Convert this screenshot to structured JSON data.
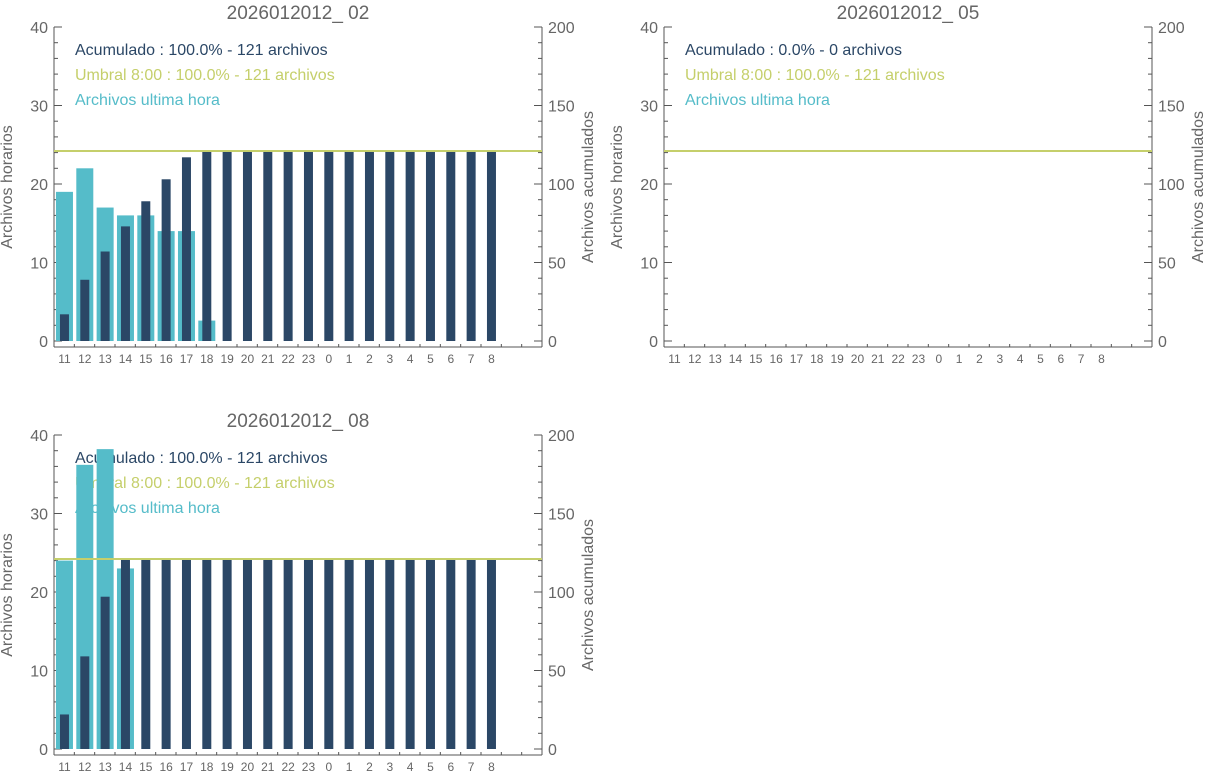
{
  "colors": {
    "accumulated": "#2b4766",
    "hourly": "#55bcc9",
    "threshold": "#c5cf6b",
    "axis": "#555555",
    "text": "#666666"
  },
  "chart_data": [
    {
      "type": "bar",
      "title": "2026012012_ 02",
      "ylabel_left": "Archivos horarios",
      "ylabel_right": "Archivos acumulados",
      "ylim_left": [
        0,
        40
      ],
      "ylim_right": [
        0,
        200
      ],
      "categories": [
        "11",
        "12",
        "13",
        "14",
        "15",
        "16",
        "17",
        "18",
        "19",
        "20",
        "21",
        "22",
        "23",
        "0",
        "1",
        "2",
        "3",
        "4",
        "5",
        "6",
        "7",
        "8"
      ],
      "legend": [
        "Acumulado : 100.0% - 121 archivos",
        "Umbral 8:00 : 100.0% - 121 archivos",
        "Archivos ultima hora"
      ],
      "threshold": 121,
      "series": [
        {
          "name": "Archivos ultima hora",
          "axis": "left",
          "values": [
            19,
            22,
            17,
            16,
            16,
            14,
            14,
            2.6,
            0,
            0,
            0,
            0,
            0,
            0,
            0,
            0,
            0,
            0,
            0,
            0,
            0,
            0
          ]
        },
        {
          "name": "Acumulado",
          "axis": "right",
          "values": [
            17,
            39,
            57,
            73,
            89,
            103,
            117,
            121,
            121,
            121,
            121,
            121,
            121,
            121,
            121,
            121,
            121,
            121,
            121,
            121,
            121,
            121
          ]
        }
      ]
    },
    {
      "type": "bar",
      "title": "2026012012_ 05",
      "ylabel_left": "Archivos horarios",
      "ylabel_right": "Archivos acumulados",
      "ylim_left": [
        0,
        40
      ],
      "ylim_right": [
        0,
        200
      ],
      "categories": [
        "11",
        "12",
        "13",
        "14",
        "15",
        "16",
        "17",
        "18",
        "19",
        "20",
        "21",
        "22",
        "23",
        "0",
        "1",
        "2",
        "3",
        "4",
        "5",
        "6",
        "7",
        "8"
      ],
      "legend": [
        "Acumulado : 0.0% - 0 archivos",
        "Umbral 8:00 : 100.0% - 121 archivos",
        "Archivos ultima hora"
      ],
      "threshold": 121,
      "series": [
        {
          "name": "Archivos ultima hora",
          "axis": "left",
          "values": [
            0,
            0,
            0,
            0,
            0,
            0,
            0,
            0,
            0,
            0,
            0,
            0,
            0,
            0,
            0,
            0,
            0,
            0,
            0,
            0,
            0,
            0
          ]
        },
        {
          "name": "Acumulado",
          "axis": "right",
          "values": [
            0,
            0,
            0,
            0,
            0,
            0,
            0,
            0,
            0,
            0,
            0,
            0,
            0,
            0,
            0,
            0,
            0,
            0,
            0,
            0,
            0,
            0
          ]
        }
      ]
    },
    {
      "type": "bar",
      "title": "2026012012_ 08",
      "ylabel_left": "Archivos horarios",
      "ylabel_right": "Archivos acumulados",
      "ylim_left": [
        0,
        40
      ],
      "ylim_right": [
        0,
        200
      ],
      "categories": [
        "11",
        "12",
        "13",
        "14",
        "15",
        "16",
        "17",
        "18",
        "19",
        "20",
        "21",
        "22",
        "23",
        "0",
        "1",
        "2",
        "3",
        "4",
        "5",
        "6",
        "7",
        "8"
      ],
      "legend": [
        "Acumulado : 100.0% - 121 archivos",
        "Umbral 8:00 : 100.0% - 121 archivos",
        "Archivos ultima hora"
      ],
      "threshold": 121,
      "series": [
        {
          "name": "Archivos ultima hora",
          "axis": "left",
          "values": [
            24,
            36.2,
            38.2,
            23,
            0,
            0,
            0,
            0,
            0,
            0,
            0,
            0,
            0,
            0,
            0,
            0,
            0,
            0,
            0,
            0,
            0,
            0
          ]
        },
        {
          "name": "Acumulado",
          "axis": "right",
          "values": [
            22,
            59,
            97,
            121,
            121,
            121,
            121,
            121,
            121,
            121,
            121,
            121,
            121,
            121,
            121,
            121,
            121,
            121,
            121,
            121,
            121,
            121
          ]
        }
      ]
    }
  ]
}
